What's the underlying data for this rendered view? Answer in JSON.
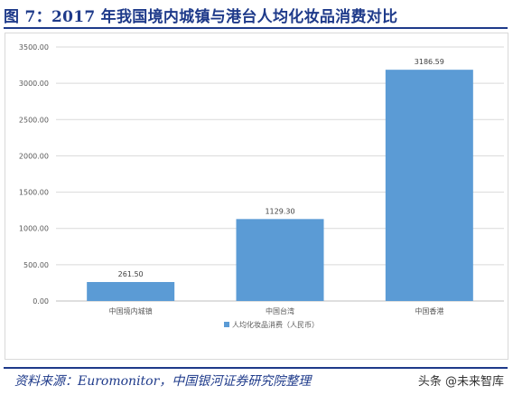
{
  "figure": {
    "title": "图 7：2017 年我国境内城镇与港台人均化妆品消费对比",
    "source": "资料来源：Euromonitor，中国银河证券研究院整理",
    "watermark": "头条 @未来智库"
  },
  "chart_data": {
    "type": "bar",
    "categories": [
      "中国境内城镇",
      "中国台湾",
      "中国香港"
    ],
    "series": [
      {
        "name": "人均化妆品消费（人民币）",
        "values": [
          261.5,
          1129.3,
          3186.59
        ],
        "value_labels": [
          "261.50",
          "1129.30",
          "3186.59"
        ],
        "color": "#5b9bd5"
      }
    ],
    "ylim": [
      0,
      3500
    ],
    "yticks": [
      "0.00",
      "500.00",
      "1000.00",
      "1500.00",
      "2000.00",
      "2500.00",
      "3000.00",
      "3500.00"
    ],
    "grid": true,
    "legend_position": "bottom",
    "xlabel": "",
    "ylabel": ""
  },
  "colors": {
    "title": "#1e3a8a",
    "bar": "#5b9bd5",
    "grid": "#d9d9d9",
    "axis_text": "#595959"
  }
}
